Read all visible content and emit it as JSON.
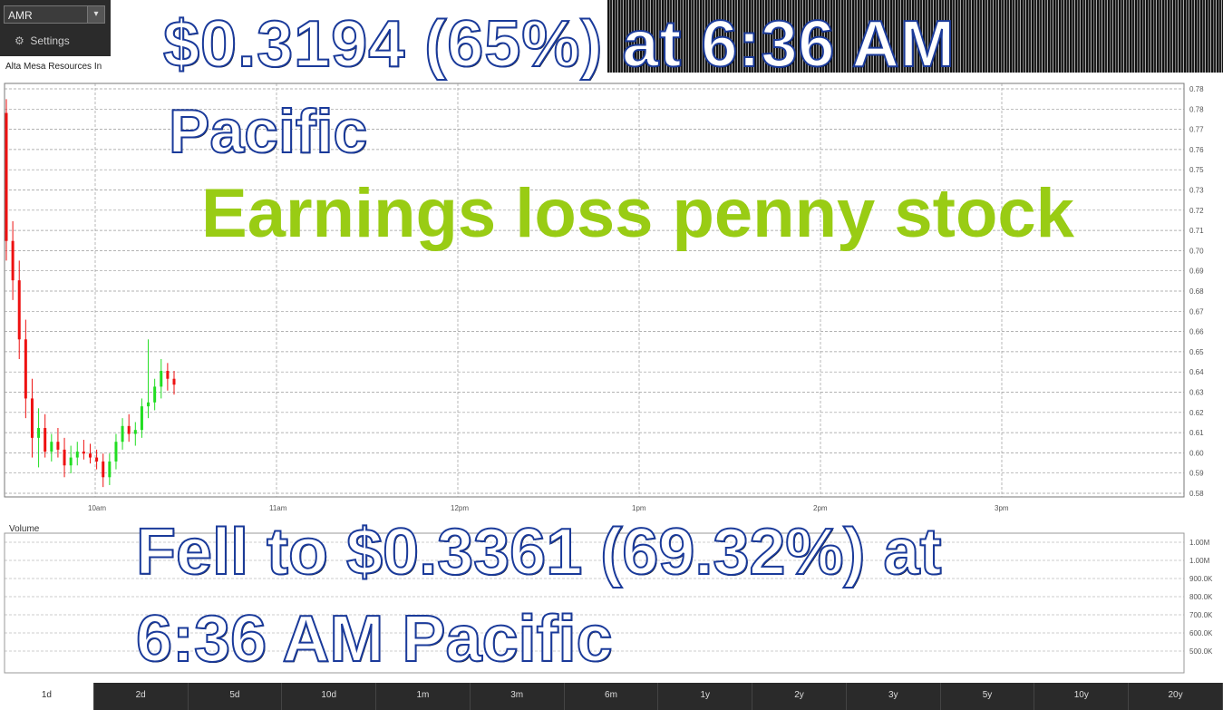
{
  "app": {
    "symbol": "AMR",
    "settings_label": "Settings",
    "company_name": "Alta Mesa Resources In"
  },
  "overlays": {
    "headline_line1": "$0.3194 (65%) at 6:36 AM",
    "headline_line2": "Pacific",
    "tag": "Earnings loss penny stock",
    "drop_line1": "Fell to $0.3361 (69.32%) at",
    "drop_line2": "6:36 AM Pacific"
  },
  "volume_label": "Volume",
  "ranges": [
    "1d",
    "2d",
    "5d",
    "10d",
    "1m",
    "3m",
    "6m",
    "1y",
    "2y",
    "3y",
    "5y",
    "10y",
    "20y"
  ],
  "active_range": "1d",
  "colors": {
    "up": "#22dd22",
    "down": "#ee1111",
    "tag_green": "#99cc14",
    "grid": "#9a9a9a"
  },
  "chart_data": {
    "type": "candlestick",
    "x_tick_labels": [
      "10am",
      "11am",
      "12pm",
      "1pm",
      "2pm",
      "3pm"
    ],
    "y_tick_labels": [
      "0.78",
      "0.78",
      "0.77",
      "0.76",
      "0.75",
      "0.73",
      "0.72",
      "0.71",
      "0.70",
      "0.69",
      "0.68",
      "0.67",
      "0.66",
      "0.65",
      "0.64",
      "0.63",
      "0.62",
      "0.61",
      "0.60",
      "0.59",
      "0.58"
    ],
    "ylim": [
      0.58,
      0.79
    ],
    "grid": true,
    "series": [
      {
        "ohlc": [
          [
            0.775,
            0.782,
            0.7,
            0.71
          ],
          [
            0.71,
            0.72,
            0.68,
            0.69
          ],
          [
            0.69,
            0.7,
            0.65,
            0.66
          ],
          [
            0.66,
            0.67,
            0.62,
            0.63
          ],
          [
            0.63,
            0.64,
            0.6,
            0.61
          ],
          [
            0.61,
            0.625,
            0.595,
            0.615
          ],
          [
            0.615,
            0.622,
            0.6,
            0.603
          ],
          [
            0.603,
            0.612,
            0.598,
            0.608
          ],
          [
            0.608,
            0.615,
            0.6,
            0.604
          ],
          [
            0.604,
            0.61,
            0.59,
            0.596
          ],
          [
            0.596,
            0.606,
            0.592,
            0.6
          ],
          [
            0.6,
            0.608,
            0.596,
            0.603
          ],
          [
            0.603,
            0.609,
            0.599,
            0.602
          ],
          [
            0.602,
            0.607,
            0.597,
            0.6
          ],
          [
            0.6,
            0.604,
            0.594,
            0.598
          ],
          [
            0.598,
            0.602,
            0.585,
            0.59
          ],
          [
            0.59,
            0.602,
            0.586,
            0.598
          ],
          [
            0.598,
            0.612,
            0.594,
            0.608
          ],
          [
            0.608,
            0.62,
            0.604,
            0.616
          ],
          [
            0.616,
            0.622,
            0.608,
            0.612
          ],
          [
            0.612,
            0.618,
            0.606,
            0.614
          ],
          [
            0.614,
            0.63,
            0.61,
            0.626
          ],
          [
            0.626,
            0.66,
            0.62,
            0.628
          ],
          [
            0.628,
            0.64,
            0.624,
            0.636
          ],
          [
            0.636,
            0.65,
            0.63,
            0.644
          ],
          [
            0.644,
            0.648,
            0.634,
            0.64
          ],
          [
            0.64,
            0.644,
            0.632,
            0.637
          ]
        ]
      }
    ],
    "volume_tick_labels": [
      "1.00M",
      "1.00M",
      "900.0K",
      "800.0K",
      "700.0K",
      "600.0K",
      "500.0K"
    ]
  }
}
